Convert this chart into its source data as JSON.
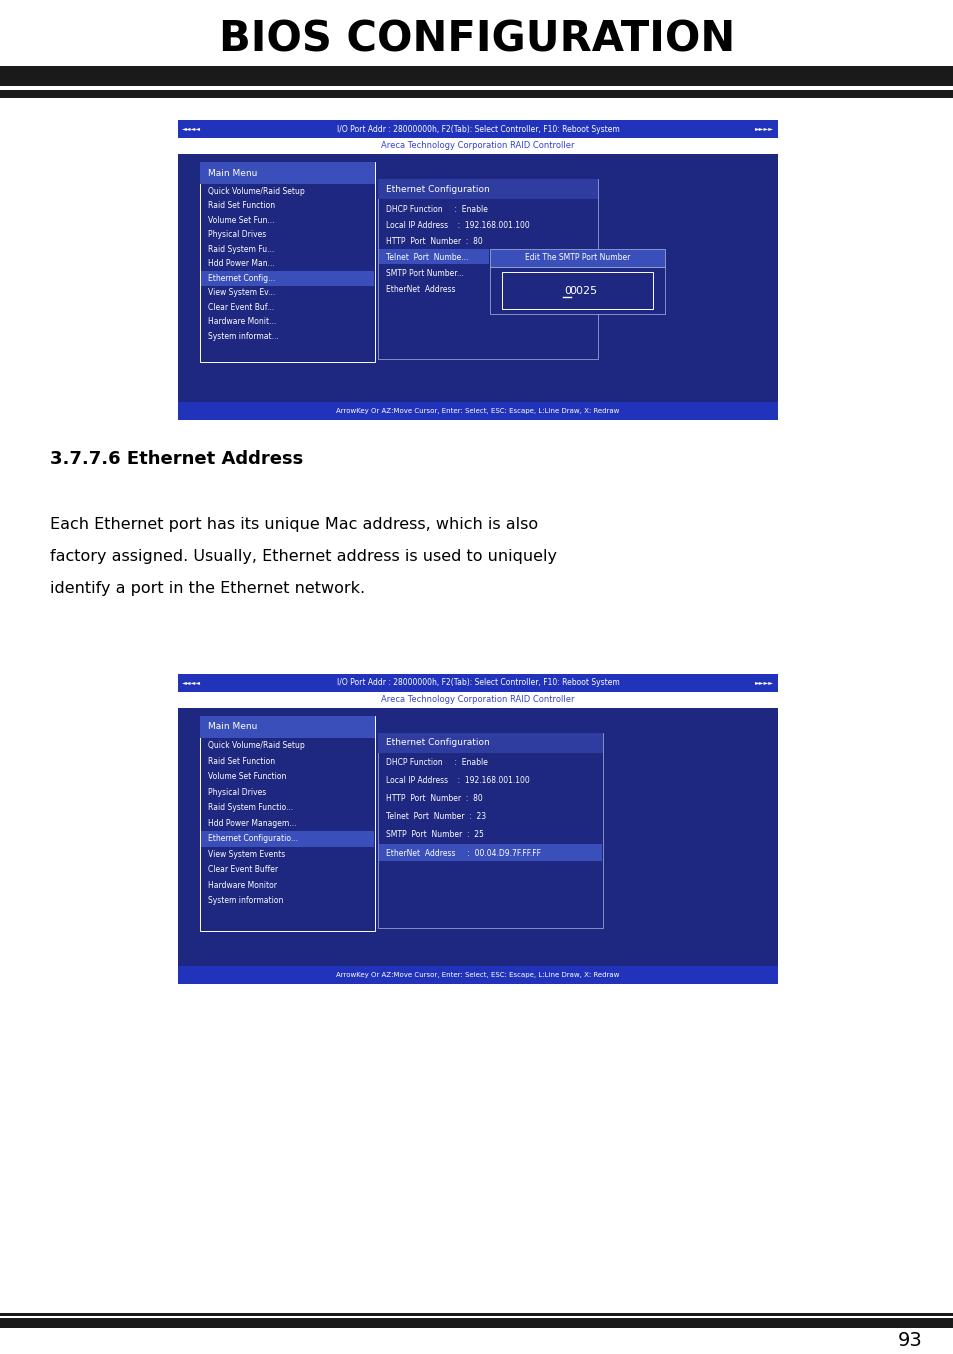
{
  "title": "BIOS CONFIGURATION",
  "bg_color": "#ffffff",
  "dark_blue": "#1e2880",
  "medium_blue": "#2e3d9f",
  "highlight_blue": "#3a4fba",
  "nav_blue": "#2233bb",
  "section_heading": "3.7.7.6 Ethernet Address",
  "body_line1": "Each Ethernet port has its unique Mac address, which is also",
  "body_line2": "factory assigned. Usually, Ethernet address is used to uniquely",
  "body_line3": "identify a port in the Ethernet network.",
  "top_bar_text": "I/O Port Addr : 28000000h, F2(Tab): Select Controller, F10: Reboot System",
  "subtitle_text": "Areca Technology Corporation RAID Controller",
  "bottom_bar_text": "ArrowKey Or AZ:Move Cursor, Enter: Select, ESC: Escape, L:Line Draw, X: Redraw",
  "main_menu_label": "Main Menu",
  "menu_items1": [
    "Quick Volume/Raid Setup",
    "Raid Set Function",
    "Volume Set Fun...",
    "Physical Drives",
    "Raid System Fu...",
    "Hdd Power Man...",
    "Ethernet Config...",
    "View System Ev...",
    "Clear Event Buf...",
    "Hardware Monit...",
    "System informat..."
  ],
  "eth_config_title": "Ethernet Configuration",
  "eth_items1": [
    "DHCP Function     :  Enable",
    "Local IP Address    :  192.168.001.100",
    "HTTP  Port  Number  :  80",
    "Telnet  Port  Numbe...",
    "SMTP Port Number...",
    "EtherNet  Address"
  ],
  "smtp_highlight_row": 3,
  "popup_title": "Edit The SMTP Port Number",
  "popup_value": "0025",
  "menu_items2": [
    "Quick Volume/Raid Setup",
    "Raid Set Function",
    "Volume Set Function",
    "Physical Drives",
    "Raid System Functio...",
    "Hdd Power Managem...",
    "Ethernet Configuratio...",
    "View System Events",
    "Clear Event Buffer",
    "Hardware Monitor",
    "System information"
  ],
  "eth_items2": [
    "DHCP Function     :  Enable",
    "Local IP Address    :  192.168.001.100",
    "HTTP  Port  Number  :  80",
    "Telnet  Port  Number  :  23",
    "SMTP  Port  Number  :  25",
    "EtherNet  Address     :  00.04.D9.7F.FF.FF"
  ],
  "eth_highlight2": 5,
  "page_number": "93"
}
